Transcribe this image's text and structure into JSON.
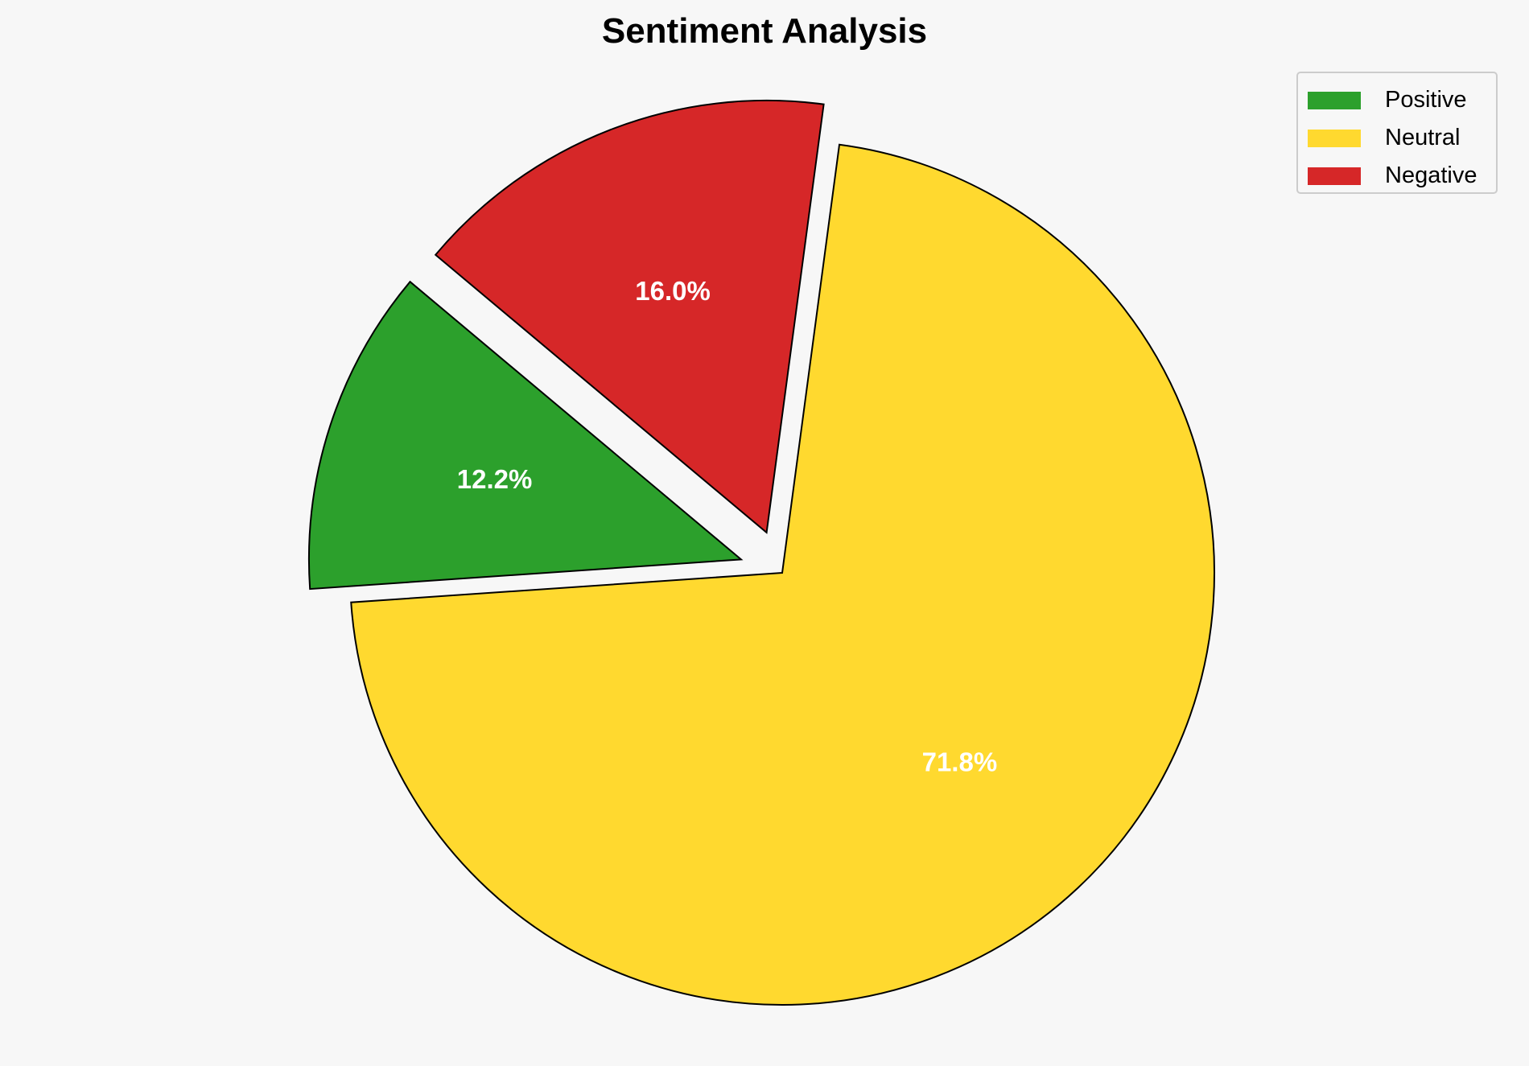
{
  "chart_data": {
    "type": "pie",
    "title": "Sentiment Analysis",
    "categories": [
      "Positive",
      "Neutral",
      "Negative"
    ],
    "values": [
      12.2,
      71.8,
      16.0
    ],
    "labels": [
      "12.2%",
      "71.8%",
      "16.0%"
    ],
    "colors": [
      "#2ca02c",
      "#ffd92f",
      "#d62728"
    ],
    "explode": [
      0.1,
      0,
      0.1
    ],
    "startangle": 140,
    "counterclock": true,
    "legend_position": "top-right",
    "background": "#f7f7f7"
  }
}
